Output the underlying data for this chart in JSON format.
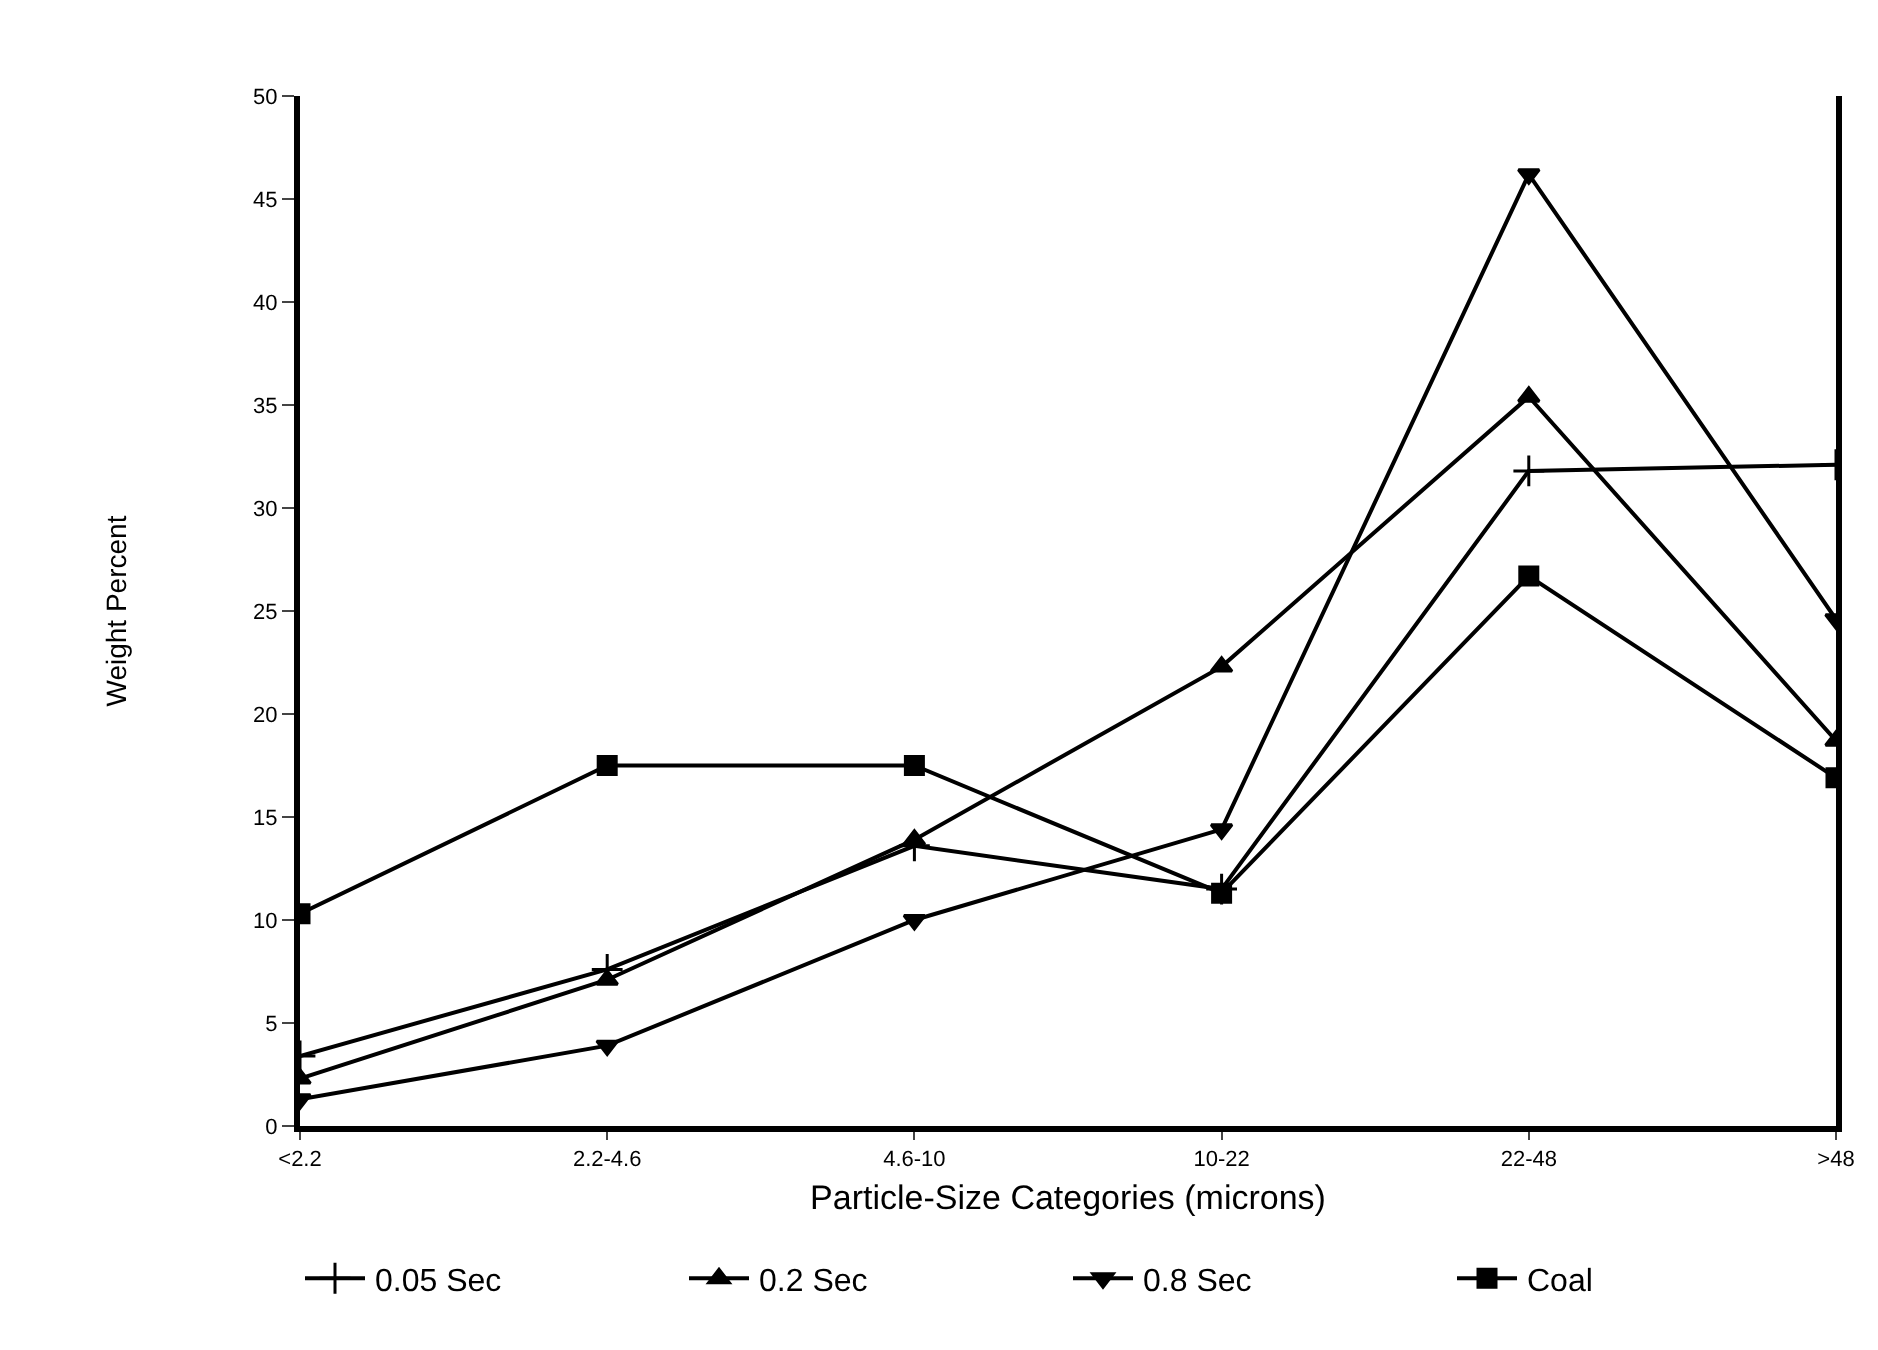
{
  "chart_data": {
    "type": "line",
    "xlabel": "Particle-Size Categories (microns)",
    "ylabel": "Weight Percent",
    "categories": [
      "<2.2",
      "2.2-4.6",
      "4.6-10",
      "10-22",
      "22-48",
      ">48"
    ],
    "series": [
      {
        "name": "0.05 Sec",
        "color": "#000000",
        "marker": "cross",
        "values": [
          3.4,
          7.6,
          13.6,
          11.5,
          31.8,
          32.1
        ]
      },
      {
        "name": "0.2 Sec",
        "color": "#000000",
        "marker": "triangle",
        "values": [
          2.3,
          7.1,
          13.9,
          22.3,
          35.4,
          18.7
        ]
      },
      {
        "name": "0.8 Sec",
        "color": "#000000",
        "marker": "triangle-down",
        "values": [
          1.3,
          3.9,
          10.0,
          14.4,
          46.2,
          24.6
        ]
      },
      {
        "name": "Coal",
        "color": "#000000",
        "marker": "square",
        "values": [
          10.3,
          17.5,
          17.5,
          11.3,
          26.7,
          16.9
        ]
      }
    ],
    "ylim": [
      0,
      50
    ],
    "yticks": [
      0,
      5,
      10,
      15,
      20,
      25,
      30,
      35,
      40,
      45,
      50
    ],
    "legend": "bottom",
    "line_style": "solid"
  }
}
